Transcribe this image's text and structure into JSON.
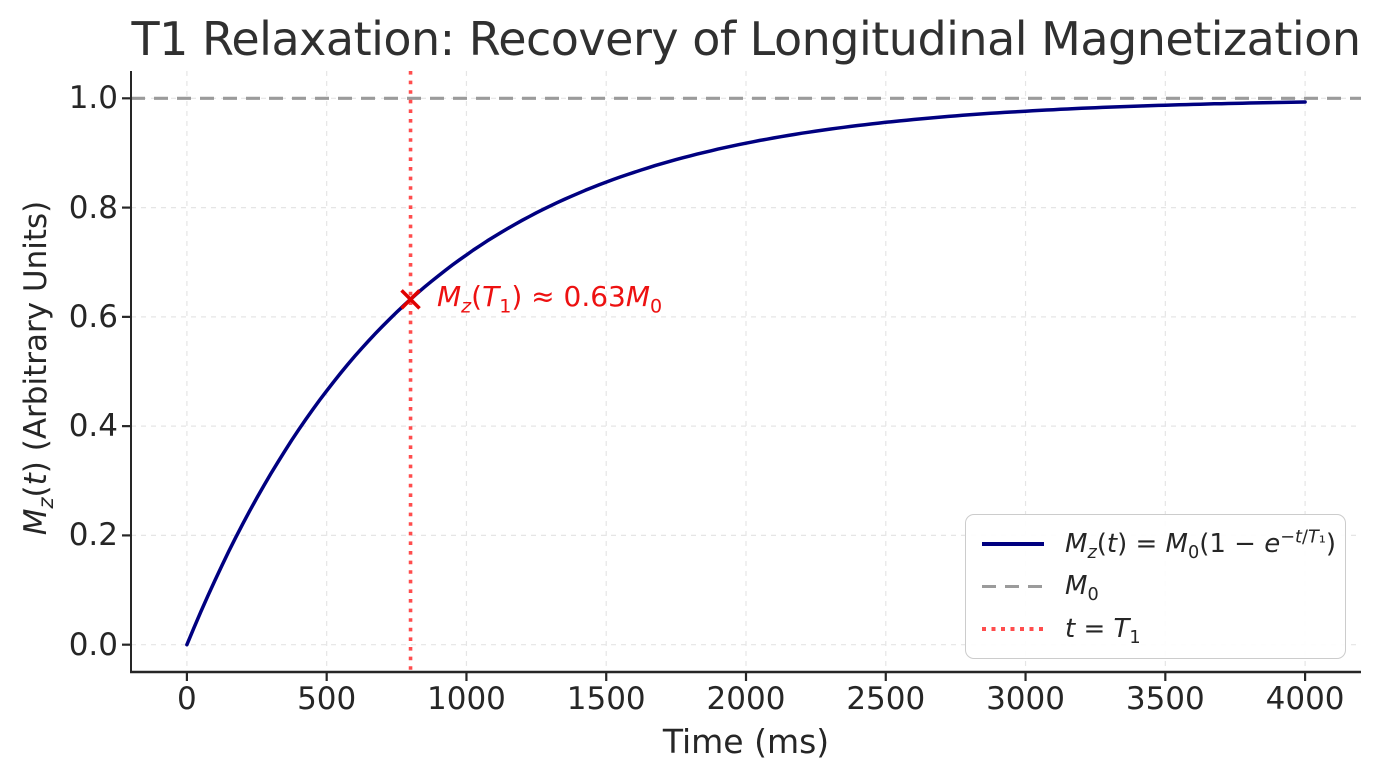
{
  "chart_data": {
    "type": "line",
    "title": "T1 Relaxation: Recovery of Longitudinal Magnetization",
    "xlabel": "Time (ms)",
    "ylabel": "*M*_{*z*}(*t*) (Arbitrary Units)",
    "xlim": [
      -200,
      4200
    ],
    "ylim": [
      -0.05,
      1.05
    ],
    "xticks": [
      0,
      500,
      1000,
      1500,
      2000,
      2500,
      3000,
      3500,
      4000
    ],
    "xtick_labels": [
      "0",
      "500",
      "1000",
      "1500",
      "2000",
      "2500",
      "3000",
      "3500",
      "4000"
    ],
    "yticks": [
      0.0,
      0.2,
      0.4,
      0.6,
      0.8,
      1.0
    ],
    "ytick_labels": [
      "0.0",
      "0.2",
      "0.4",
      "0.6",
      "0.8",
      "1.0"
    ],
    "grid": true,
    "grid_style": "dashed",
    "grid_color": "#e5e5e5",
    "series": [
      {
        "name": "mz-recovery",
        "label": "*M*_{*z*}(*t*) = *M*_{0}(1 − *e*^{−*t*/*T*₁})",
        "color": "#000080",
        "line_style": "solid",
        "line_width": 3.5,
        "formula": "Mz(t) = M0 (1 − exp(−t/T1))",
        "params": {
          "M0": 1,
          "T1_ms": 800
        },
        "points": {
          "t_ms": [
            0,
            250,
            500,
            750,
            1000,
            1250,
            1500,
            1750,
            2000,
            2250,
            2500,
            2750,
            3000,
            3250,
            3500,
            3750,
            4000
          ],
          "Mz": [
            0.0,
            0.268,
            0.465,
            0.608,
            0.713,
            0.79,
            0.847,
            0.888,
            0.918,
            0.94,
            0.956,
            0.968,
            0.976,
            0.983,
            0.987,
            0.991,
            0.993
          ]
        }
      }
    ],
    "reference_lines": [
      {
        "name": "m0-level",
        "label": "*M*_{0}",
        "orientation": "horizontal",
        "value": 1.0,
        "color": "#9b9b9b",
        "line_style": "dashed"
      },
      {
        "name": "t1-time",
        "label": "*t* = *T*_{1}",
        "orientation": "vertical",
        "value": 800,
        "color": "#ff4d4d",
        "line_style": "dotted"
      }
    ],
    "annotation": {
      "text": "*M*_{*z*}(*T*_{1}) ≈ 0.63*M*_{0}",
      "text_color": "#ed1111",
      "marker": {
        "x": 800,
        "y": 0.632,
        "symbol": "x",
        "color": "#e00000"
      }
    },
    "legend": {
      "position": "lower right",
      "items": [
        {
          "label": "*M*_{*z*}(*t*) = *M*_{0}(1 − *e*^{−*t*/*T*₁})",
          "sample": "solid-navy"
        },
        {
          "label": "*M*_{0}",
          "sample": "dashed-gray"
        },
        {
          "label": "*t* = *T*_{1}",
          "sample": "dotted-red"
        }
      ]
    }
  }
}
